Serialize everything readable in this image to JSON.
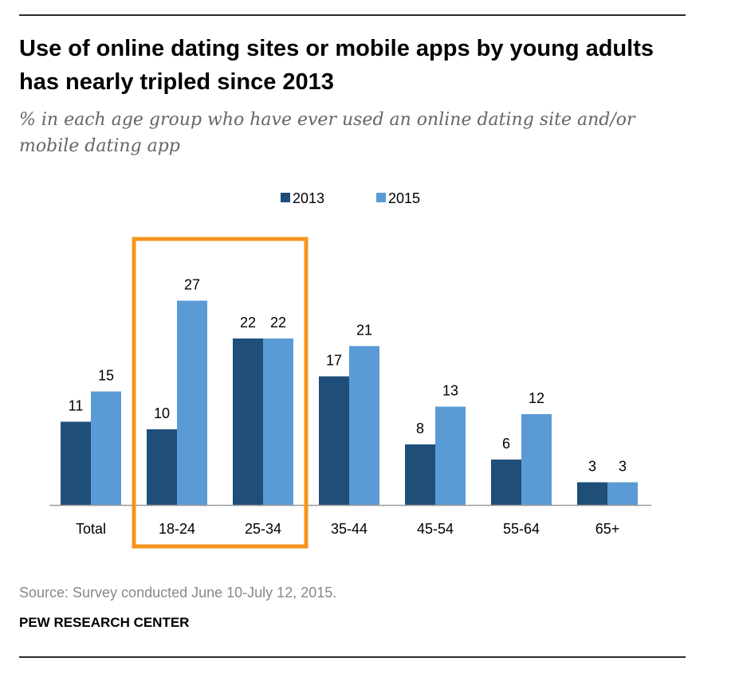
{
  "header": {
    "title": "Use of online dating sites or mobile apps by young adults has nearly tripled since 2013",
    "subtitle": "% in each age group who have ever used an online dating site and/or mobile dating app"
  },
  "footer": {
    "source": "Source: Survey conducted June 10-July 12, 2015.",
    "org": "PEW RESEARCH CENTER"
  },
  "colors": {
    "series_2013": "#1f4e79",
    "series_2015": "#5b9bd5",
    "highlight": "#f7941d",
    "axis": "#999999"
  },
  "chart_data": {
    "type": "bar",
    "title": "Use of online dating sites or mobile apps by young adults has nearly tripled since 2013",
    "xlabel": "",
    "ylabel": "%",
    "ylim": [
      0,
      30
    ],
    "grid": false,
    "legend_position": "top-center",
    "categories": [
      "Total",
      "18-24",
      "25-34",
      "35-44",
      "45-54",
      "55-64",
      "65+"
    ],
    "series": [
      {
        "name": "2013",
        "values": [
          11,
          10,
          22,
          17,
          8,
          6,
          3
        ]
      },
      {
        "name": "2015",
        "values": [
          15,
          27,
          22,
          21,
          13,
          12,
          3
        ]
      }
    ],
    "highlighted_categories": [
      "18-24",
      "25-34"
    ]
  }
}
